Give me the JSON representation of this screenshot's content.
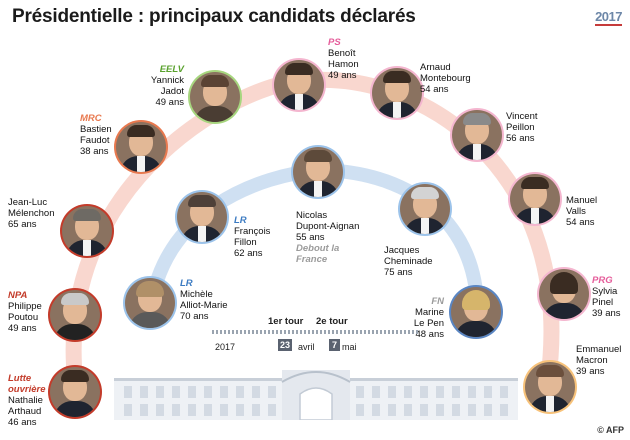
{
  "title": "Présidentielle : principaux candidats déclarés",
  "logo": "2017",
  "credit": "AFP",
  "timeline": {
    "year": "2017",
    "round1_label": "1er tour",
    "round1_day": "23",
    "round1_month": "avril",
    "round2_label": "2e tour",
    "round2_day": "7",
    "round2_month": "mai"
  },
  "candidates": [
    {
      "party": "Lutte ouvrière",
      "name1": "Nathalie",
      "name2": "Arthaud",
      "age": "46 ans",
      "ring": "#c33b2a"
    },
    {
      "party": "NPA",
      "name1": "Philippe",
      "name2": "Poutou",
      "age": "49 ans",
      "ring": "#c33b2a"
    },
    {
      "party": "",
      "name1": "Jean-Luc",
      "name2": "Mélenchon",
      "age": "65 ans",
      "ring": "#c33b2a"
    },
    {
      "party": "MRC",
      "name1": "Bastien",
      "name2": "Faudot",
      "age": "38 ans",
      "ring": "#e8794f"
    },
    {
      "party": "EELV",
      "name1": "Yannick",
      "name2": "Jadot",
      "age": "49 ans",
      "ring": "#a7d67f"
    },
    {
      "party": "PS",
      "name1": "Benoît",
      "name2": "Hamon",
      "age": "49 ans",
      "ring": "#f4b6cf"
    },
    {
      "party": "",
      "name1": "Arnaud",
      "name2": "Montebourg",
      "age": "54 ans",
      "ring": "#f4b6cf"
    },
    {
      "party": "",
      "name1": "Vincent",
      "name2": "Peillon",
      "age": "56 ans",
      "ring": "#f4b6cf"
    },
    {
      "party": "",
      "name1": "Manuel",
      "name2": "Valls",
      "age": "54 ans",
      "ring": "#f4b6cf"
    },
    {
      "party": "PRG",
      "name1": "Sylvia",
      "name2": "Pinel",
      "age": "39 ans",
      "ring": "#f4b6cf"
    },
    {
      "party": "",
      "name1": "Emmanuel",
      "name2": "Macron",
      "age": "39 ans",
      "ring": "#f7c27a"
    },
    {
      "party": "LR",
      "name1": "Michèle",
      "name2": "Alliot-Marie",
      "age": "70 ans",
      "ring": "#9cc3ea"
    },
    {
      "party": "LR",
      "name1": "François",
      "name2": "Fillon",
      "age": "62 ans",
      "ring": "#9cc3ea"
    },
    {
      "party": "Debout la France",
      "name1": "Nicolas",
      "name2": "Dupont-Aignan",
      "age": "55 ans",
      "ring": "#9cc3ea"
    },
    {
      "party": "",
      "name1": "Jacques",
      "name2": "Cheminade",
      "age": "75 ans",
      "ring": "#9cc3ea"
    },
    {
      "party": "FN",
      "name1": "Marine",
      "name2": "Le Pen",
      "age": "48 ans",
      "ring": "#5a86c3"
    }
  ]
}
